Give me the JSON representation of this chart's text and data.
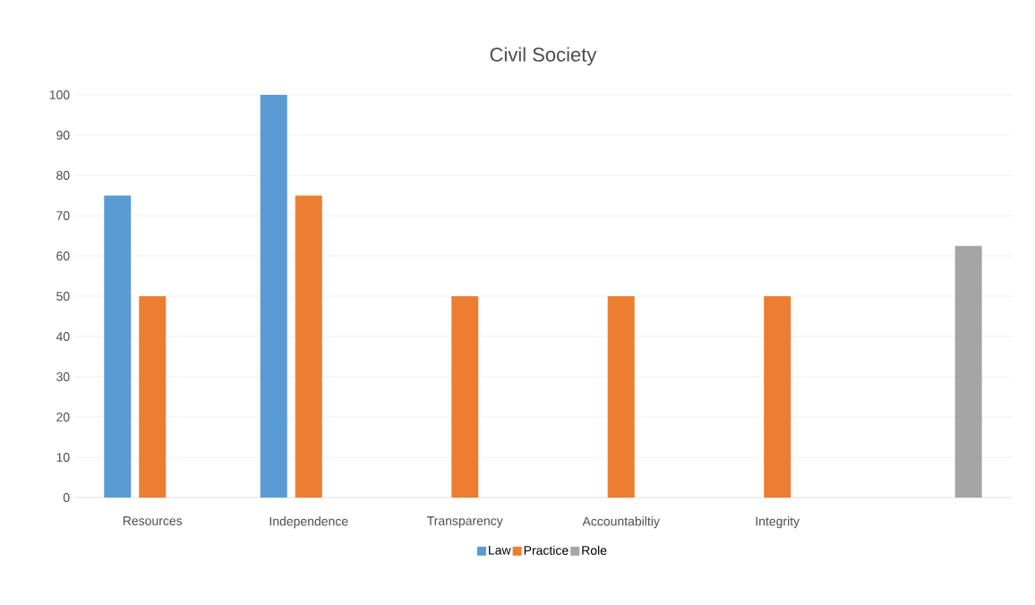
{
  "chart_data": {
    "type": "bar",
    "title": "Civil Society",
    "categories": [
      "Resources",
      "Independence",
      "Transparency",
      "Accountabiltiy",
      "Integrity",
      null
    ],
    "series": [
      {
        "name": "Law",
        "color": "#5b9bd5",
        "values": [
          75,
          100,
          null,
          null,
          null,
          null
        ]
      },
      {
        "name": "Practice",
        "color": "#ed7d31",
        "values": [
          50,
          75,
          50,
          50,
          50,
          null
        ]
      },
      {
        "name": "Role",
        "color": "#a5a5a5",
        "values": [
          null,
          null,
          null,
          null,
          null,
          62.5
        ]
      }
    ],
    "ylim": [
      0,
      100
    ],
    "yticks": [
      0,
      10,
      20,
      30,
      40,
      50,
      60,
      70,
      80,
      90,
      100
    ],
    "grid": "y",
    "legend": "bottom"
  }
}
